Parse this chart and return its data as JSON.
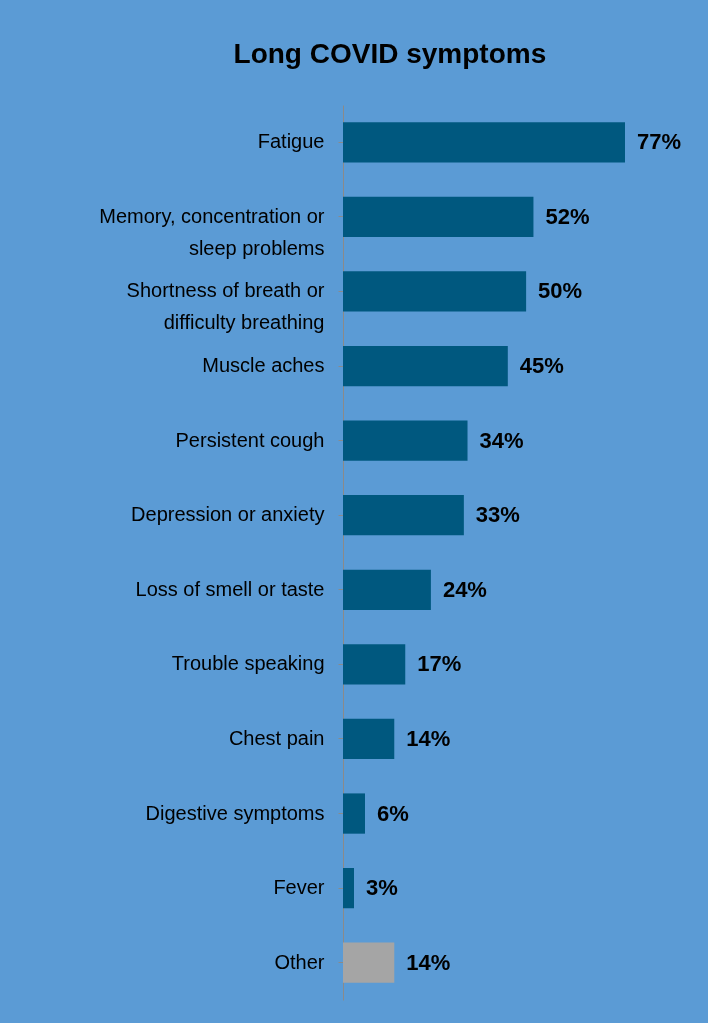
{
  "chart_data": {
    "type": "bar",
    "orientation": "horizontal",
    "title": "Long COVID symptoms",
    "categories": [
      "Fatigue",
      "Memory, concentration or sleep problems",
      "Shortness of breath or difficulty breathing",
      "Muscle aches",
      "Persistent cough",
      "Depression or anxiety",
      "Loss of smell or taste",
      "Trouble speaking",
      "Chest pain",
      "Digestive symptoms",
      "Fever",
      "Other"
    ],
    "values": [
      77,
      52,
      50,
      45,
      34,
      33,
      24,
      17,
      14,
      6,
      3,
      14
    ],
    "value_labels": [
      "77%",
      "52%",
      "50%",
      "45%",
      "34%",
      "33%",
      "24%",
      "17%",
      "14%",
      "6%",
      "3%",
      "14%"
    ],
    "colors": [
      "#00587f",
      "#00587f",
      "#00587f",
      "#00587f",
      "#00587f",
      "#00587f",
      "#00587f",
      "#00587f",
      "#00587f",
      "#00587f",
      "#00587f",
      "#a5a5a5"
    ],
    "data_labels": true
  }
}
